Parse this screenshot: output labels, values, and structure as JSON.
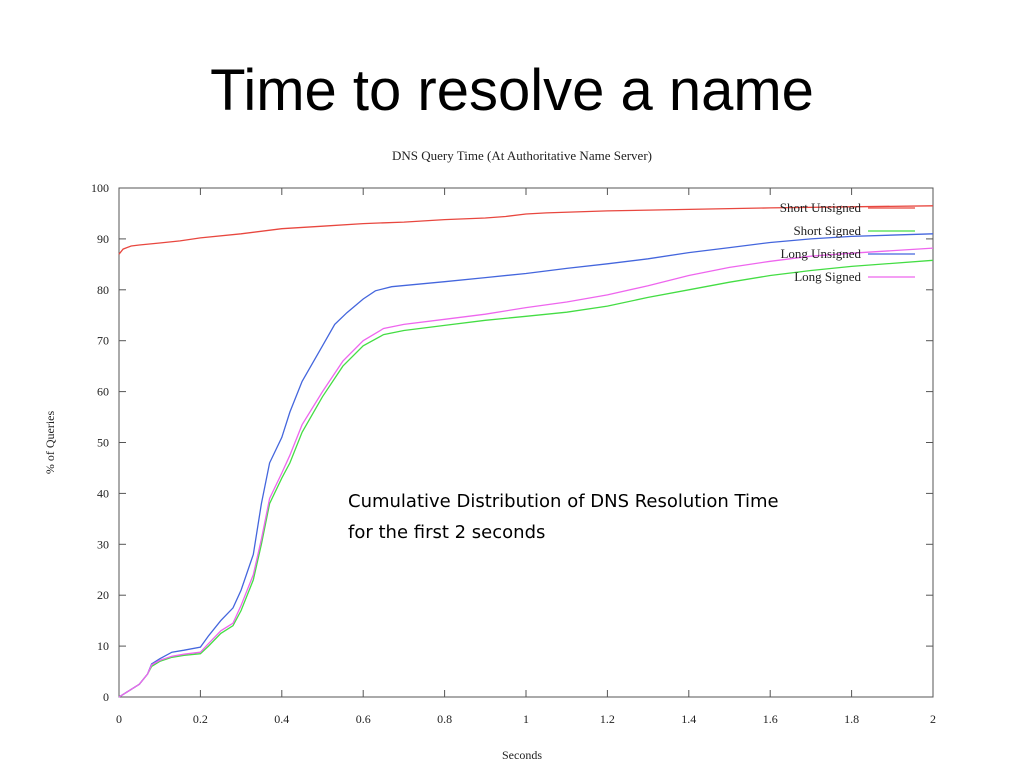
{
  "slide": {
    "title": "Time to resolve a name",
    "callout_line1": "Cumulative Distribution of DNS Resolution Time",
    "callout_line2": "for the first 2 seconds"
  },
  "chart_data": {
    "type": "line",
    "title": "DNS Query Time (At Authoritative Name Server)",
    "xlabel": "Seconds",
    "ylabel": "% of Queries",
    "xlim": [
      0,
      2
    ],
    "ylim": [
      0,
      100
    ],
    "x_ticks": [
      0,
      0.2,
      0.4,
      0.6,
      0.8,
      1,
      1.2,
      1.4,
      1.6,
      1.8,
      2
    ],
    "y_ticks": [
      0,
      10,
      20,
      30,
      40,
      50,
      60,
      70,
      80,
      90,
      100
    ],
    "legend_position": "top-right",
    "grid": false,
    "series": [
      {
        "name": "Short Unsigned",
        "color": "#e8473f",
        "x": [
          0,
          0.01,
          0.03,
          0.05,
          0.1,
          0.15,
          0.2,
          0.3,
          0.4,
          0.5,
          0.6,
          0.7,
          0.8,
          0.9,
          0.95,
          1.0,
          1.05,
          1.2,
          1.4,
          1.6,
          1.8,
          2.0
        ],
        "y": [
          87,
          88,
          88.6,
          88.8,
          89.2,
          89.6,
          90.2,
          91,
          92,
          92.5,
          93,
          93.3,
          93.8,
          94.1,
          94.4,
          94.9,
          95.1,
          95.5,
          95.8,
          96.1,
          96.3,
          96.5
        ]
      },
      {
        "name": "Short Signed",
        "color": "#44dd44",
        "x": [
          0,
          0.02,
          0.05,
          0.07,
          0.08,
          0.1,
          0.13,
          0.16,
          0.2,
          0.22,
          0.25,
          0.28,
          0.3,
          0.33,
          0.35,
          0.37,
          0.4,
          0.42,
          0.45,
          0.5,
          0.55,
          0.6,
          0.65,
          0.7,
          0.8,
          0.9,
          1.0,
          1.1,
          1.2,
          1.3,
          1.4,
          1.5,
          1.6,
          1.7,
          1.8,
          2.0
        ],
        "y": [
          0,
          1,
          2.5,
          4.5,
          6,
          7,
          7.8,
          8.2,
          8.5,
          10,
          12.5,
          14,
          17,
          23,
          30,
          38,
          43,
          46,
          52,
          59,
          65,
          69,
          71.2,
          72,
          73,
          74,
          74.8,
          75.6,
          76.8,
          78.5,
          80,
          81.5,
          82.8,
          83.8,
          84.6,
          85.8
        ]
      },
      {
        "name": "Long Unsigned",
        "color": "#4466dd",
        "x": [
          0,
          0.02,
          0.05,
          0.07,
          0.08,
          0.1,
          0.13,
          0.16,
          0.2,
          0.22,
          0.25,
          0.28,
          0.3,
          0.33,
          0.35,
          0.37,
          0.4,
          0.42,
          0.45,
          0.5,
          0.53,
          0.56,
          0.6,
          0.63,
          0.67,
          0.8,
          0.9,
          1.0,
          1.1,
          1.2,
          1.3,
          1.4,
          1.5,
          1.6,
          1.7,
          1.8,
          2.0
        ],
        "y": [
          0,
          1,
          2.5,
          4.5,
          6.5,
          7.5,
          8.8,
          9.2,
          9.8,
          12,
          15,
          17.5,
          21,
          28,
          38,
          46,
          51,
          56,
          62,
          69,
          73.2,
          75.5,
          78.2,
          79.8,
          80.6,
          81.6,
          82.4,
          83.2,
          84.2,
          85.1,
          86.1,
          87.3,
          88.3,
          89.3,
          90,
          90.5,
          91
        ]
      },
      {
        "name": "Long Signed",
        "color": "#ee66ee",
        "x": [
          0,
          0.02,
          0.05,
          0.07,
          0.08,
          0.1,
          0.13,
          0.16,
          0.2,
          0.22,
          0.25,
          0.28,
          0.3,
          0.33,
          0.35,
          0.37,
          0.4,
          0.42,
          0.45,
          0.5,
          0.55,
          0.6,
          0.65,
          0.7,
          0.8,
          0.9,
          1.0,
          1.1,
          1.2,
          1.3,
          1.4,
          1.5,
          1.6,
          1.7,
          1.8,
          2.0
        ],
        "y": [
          0,
          1,
          2.5,
          4.5,
          6.3,
          7.2,
          8,
          8.4,
          8.8,
          10.5,
          13,
          14.5,
          18,
          24,
          31,
          39,
          44,
          47.5,
          53.5,
          60,
          66,
          70,
          72.4,
          73.2,
          74.2,
          75.2,
          76.5,
          77.6,
          79,
          80.8,
          82.8,
          84.4,
          85.6,
          86.6,
          87.2,
          88.2
        ]
      }
    ]
  }
}
